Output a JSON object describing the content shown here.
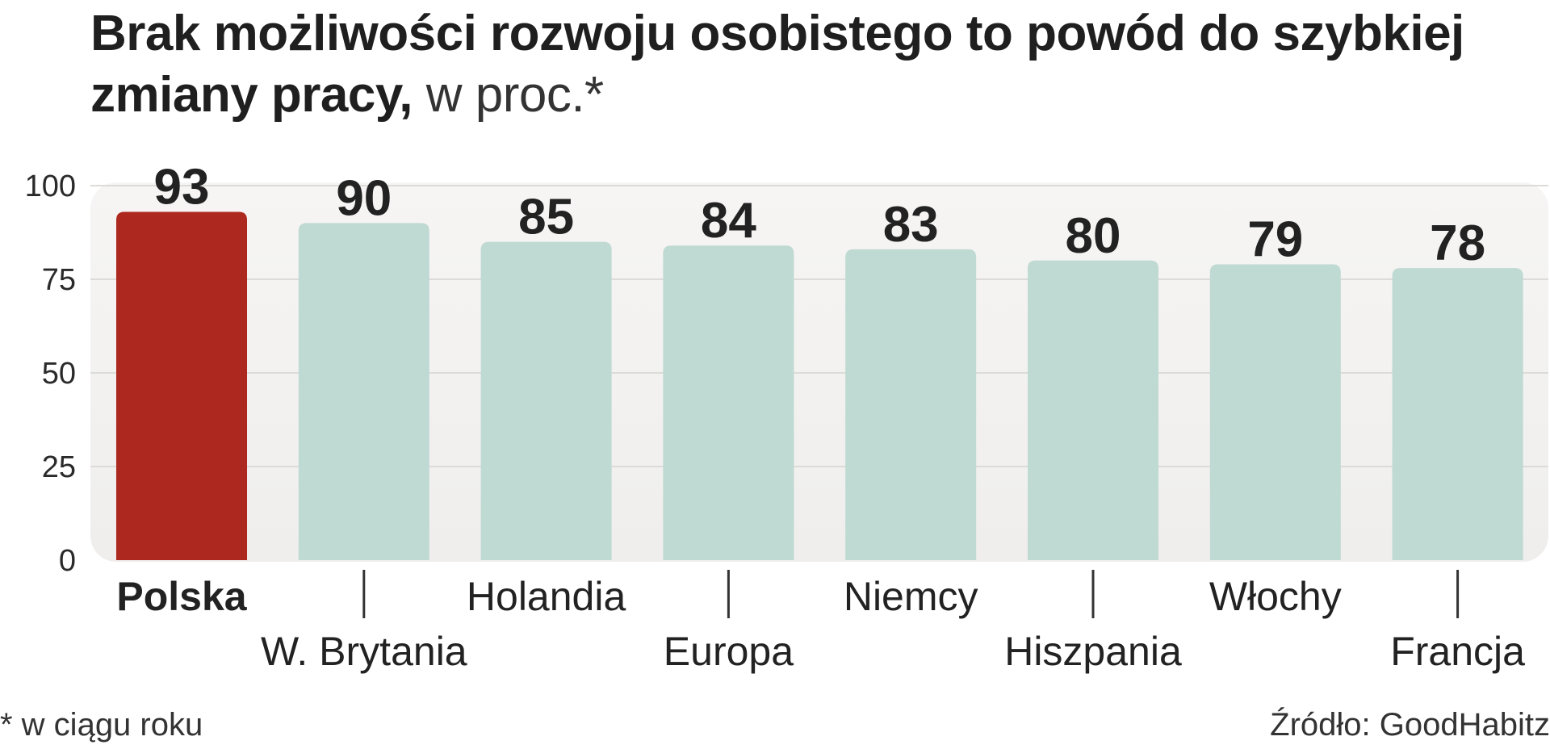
{
  "title": {
    "bold": "Brak możliwości rozwoju osobistego to powód do szybkiej zmiany pracy,",
    "light": " w proc.*"
  },
  "footnote": "* w ciągu roku",
  "source": "Źródło: GoodHabitz",
  "colors": {
    "highlight": "#ad281f",
    "bar": "#bfd9d3",
    "panel": "#efeeec",
    "grid": "#dcdbd8"
  },
  "chart_data": {
    "type": "bar",
    "title": "Brak możliwości rozwoju osobistego to powód do szybkiej zmiany pracy, w proc.*",
    "categories": [
      "Polska",
      "W. Brytania",
      "Holandia",
      "Europa",
      "Niemcy",
      "Hiszpania",
      "Włochy",
      "Francja"
    ],
    "values": [
      93,
      90,
      85,
      84,
      83,
      80,
      79,
      78
    ],
    "value_labels": [
      "93",
      "90",
      "85",
      "84",
      "83",
      "80",
      "79",
      "78"
    ],
    "highlight_index": 0,
    "ylim": [
      0,
      100
    ],
    "yticks": [
      0,
      25,
      50,
      75,
      100
    ],
    "ytick_labels": [
      "0",
      "25",
      "50",
      "75",
      "100"
    ],
    "xlabel": "",
    "ylabel": "",
    "grid": true
  }
}
